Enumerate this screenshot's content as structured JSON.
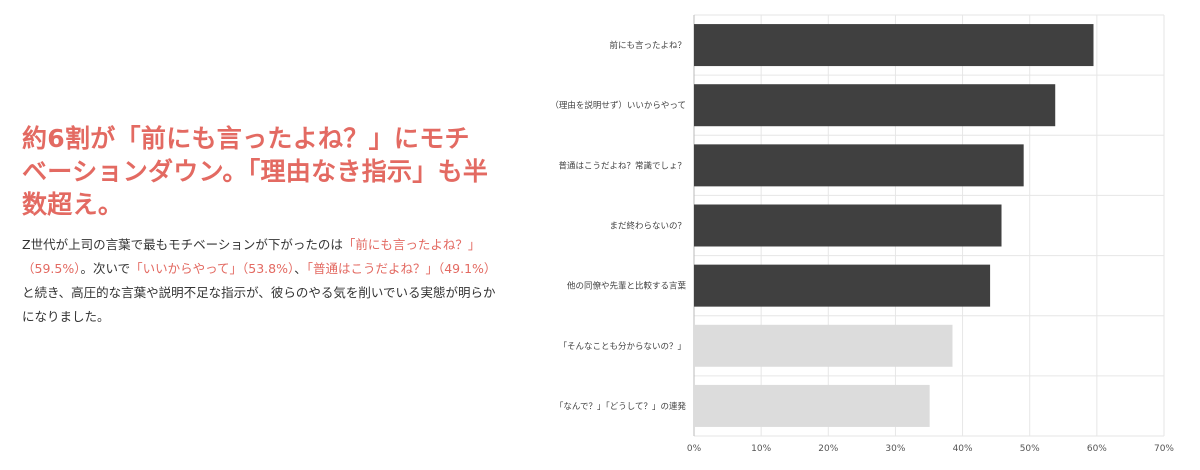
{
  "headline": "約6割が「前にも言ったよね？」にモチベーションダウン。「理由なき指示」も半数超え。",
  "body": {
    "part1": "Z世代が上司の言葉で最もモチベーションが下がったのは",
    "hl1": "「前にも言ったよね？」（59.5%）",
    "part2": "。次いで",
    "hl2": "「いいからやって」（53.8%）",
    "part3": "、",
    "hl3": "「普通はこうだよね？」（49.1%）",
    "part4": "と続き、高圧的な言葉や説明不足な指示が、彼らのやる気を削いでいる実態が明らかになりました。"
  },
  "colors": {
    "accent": "#e36a62",
    "bar_dark": "#404040",
    "bar_light": "#dcdcdc",
    "grid": "#e6e6e6"
  },
  "chart_data": {
    "type": "bar",
    "orientation": "horizontal",
    "categories": [
      "前にも言ったよね？",
      "（理由を説明せず）いいからやって",
      "普通はこうだよね？常識でしょ？",
      "まだ終わらないの？",
      "他の同僚や先輩と比較する言葉",
      "「そんなことも分からないの？」",
      "「なんで？」「どうして？」の連発"
    ],
    "values": [
      59.5,
      53.8,
      49.1,
      45.8,
      44.1,
      38.5,
      35.1
    ],
    "highlighted": [
      true,
      true,
      true,
      true,
      true,
      false,
      false
    ],
    "xlim": [
      0,
      70
    ],
    "xticks": [
      "0%",
      "10%",
      "20%",
      "30%",
      "40%",
      "50%",
      "60%",
      "70%"
    ],
    "grid": true
  }
}
